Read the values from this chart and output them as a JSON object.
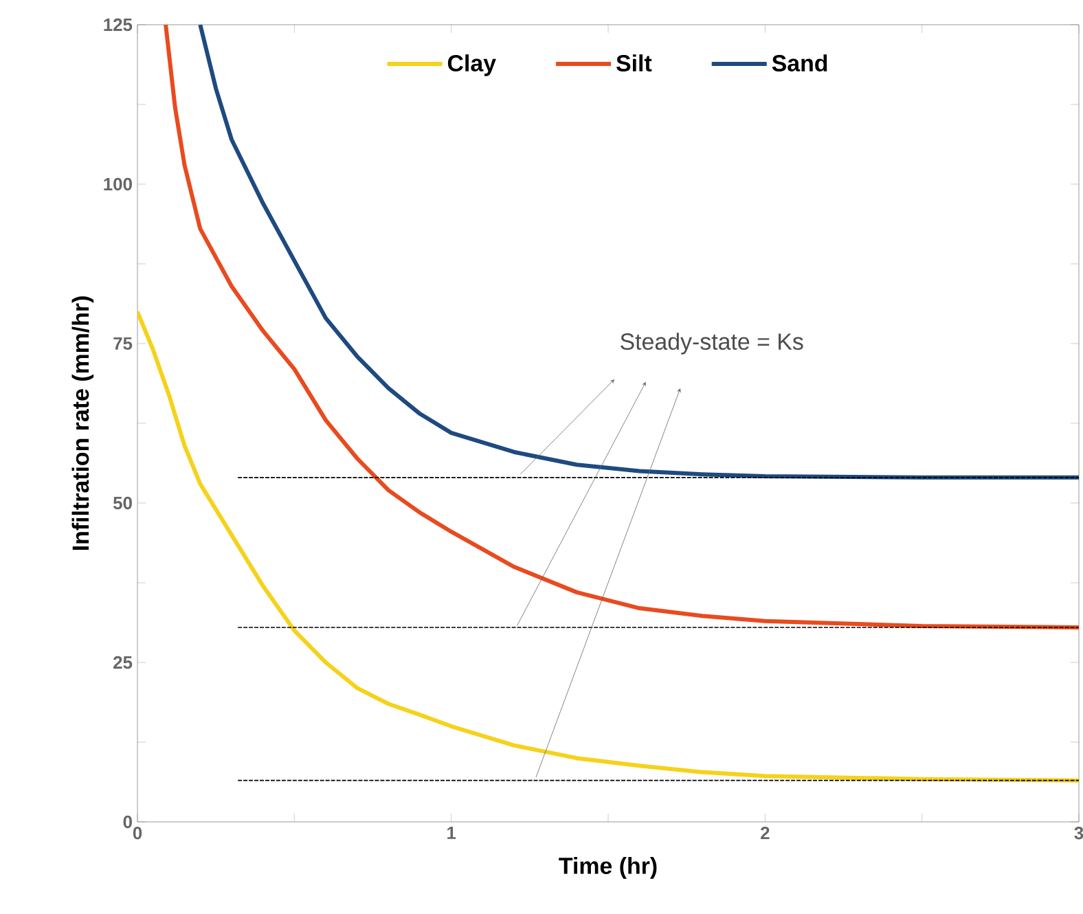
{
  "chart_data": {
    "type": "line",
    "xlabel": "Time (hr)",
    "ylabel": "Infiltration rate (mm/hr)",
    "xlim": [
      0,
      3
    ],
    "ylim": [
      0,
      125
    ],
    "xticks": [
      0,
      {
        "value": 0.5,
        "label": null
      },
      1,
      {
        "value": 1.5,
        "label": null
      },
      2,
      {
        "value": 2.5,
        "label": null
      },
      3
    ],
    "yticks": [
      0,
      {
        "value": 12.5,
        "label": null
      },
      25,
      {
        "value": 37.5,
        "label": null
      },
      50,
      {
        "value": 62.5,
        "label": null
      },
      75,
      {
        "value": 87.5,
        "label": null
      },
      100,
      {
        "value": 112.5,
        "label": null
      },
      125
    ],
    "grid": false,
    "legend": "top",
    "marker": "none",
    "line_style": "solid",
    "annotations": [
      {
        "text": "Steady-state = Ks",
        "x": 1.22,
        "y": 54.5
      }
    ],
    "series": [
      {
        "name": "Clay",
        "color": "#f5d21b",
        "x": [
          0,
          0.05,
          0.1,
          0.15,
          0.2,
          0.3,
          0.4,
          0.5,
          0.6,
          0.7,
          0.8,
          0.9,
          1.0,
          1.2,
          1.4,
          1.6,
          1.8,
          2.0,
          2.5,
          3
        ],
        "values": [
          80,
          74,
          67,
          59,
          53,
          45,
          37,
          30,
          25,
          21,
          18.5,
          16.8,
          15,
          12,
          10,
          8.8,
          7.8,
          7.2,
          6.7,
          6.5
        ]
      },
      {
        "name": "Silt",
        "color": "#e84b1f",
        "x": [
          0.09,
          0.12,
          0.15,
          0.2,
          0.3,
          0.4,
          0.5,
          0.6,
          0.7,
          0.8,
          0.9,
          1.0,
          1.2,
          1.4,
          1.6,
          1.8,
          2.0,
          2.5,
          3
        ],
        "values": [
          125,
          112,
          103,
          93,
          84,
          77,
          71,
          63,
          57,
          52,
          48.5,
          45.5,
          40,
          36,
          33.5,
          32.3,
          31.5,
          30.7,
          30.5
        ]
      },
      {
        "name": "Sand",
        "color": "#1e4a80",
        "x": [
          0.2,
          0.25,
          0.3,
          0.4,
          0.5,
          0.6,
          0.7,
          0.8,
          0.9,
          1.0,
          1.2,
          1.4,
          1.6,
          1.8,
          2.0,
          2.5,
          3
        ],
        "values": [
          125,
          115,
          107,
          97,
          88,
          79,
          73,
          68,
          64,
          61,
          58,
          56,
          55,
          54.5,
          54.2,
          54,
          54
        ]
      },
      {
        "color": "#000000",
        "line_style": "dashed",
        "x": [
          0.32,
          3
        ],
        "values": [
          54,
          54
        ]
      },
      {
        "color": "#000000",
        "line_style": "dashed",
        "x": [
          0.32,
          3
        ],
        "values": [
          30.5,
          30.5
        ]
      },
      {
        "color": "#000000",
        "line_style": "dashed",
        "x": [
          0.32,
          3
        ],
        "values": [
          6.5,
          6.5
        ]
      }
    ]
  }
}
